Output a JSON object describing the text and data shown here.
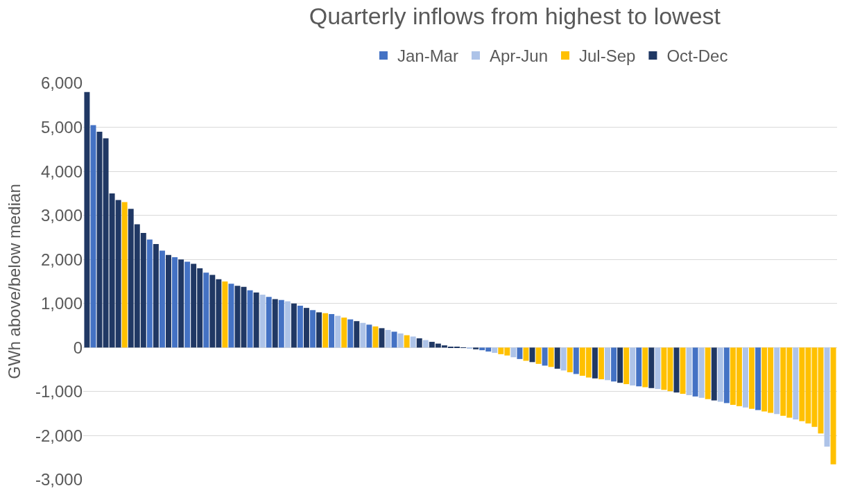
{
  "chart_data": {
    "type": "bar",
    "title": "Quarterly inflows from highest to lowest",
    "ylabel": "GWh above/below median",
    "stacked": true,
    "grid": "y",
    "legend": "top",
    "tick_labels": "y",
    "categories": [
      null,
      null,
      null,
      null,
      null,
      null,
      null,
      null,
      null,
      null,
      null,
      null,
      null,
      null,
      null,
      null,
      null,
      null,
      null,
      null,
      null,
      null,
      null,
      null,
      null,
      null,
      null,
      null,
      null,
      null,
      null,
      null,
      null,
      null,
      null,
      null,
      null,
      null,
      null,
      null,
      null,
      null,
      null,
      null,
      null,
      null,
      null,
      null,
      null,
      null,
      null,
      null,
      null,
      null,
      null,
      null,
      null,
      null,
      null,
      null,
      null,
      null,
      null,
      null,
      null,
      null,
      null,
      null,
      null,
      null,
      null,
      null,
      null,
      null,
      null,
      null,
      null,
      null,
      null,
      null,
      null,
      null,
      null,
      null,
      null,
      null,
      null,
      null,
      null,
      null,
      null,
      null,
      null,
      null,
      null,
      null,
      null,
      null,
      null,
      null,
      null,
      null,
      null,
      null,
      null,
      null,
      null,
      null,
      null,
      null,
      null,
      null,
      null,
      null,
      null,
      null,
      null,
      null,
      null,
      null
    ],
    "ylim": [
      -3000,
      6000
    ],
    "yticks": [
      {
        "value": -3000,
        "label": "-3,000"
      },
      {
        "value": -2000,
        "label": "-2,000"
      },
      {
        "value": -1000,
        "label": "-1,000"
      },
      0,
      {
        "value": 1000,
        "label": "1,000"
      },
      {
        "value": 2000,
        "label": "2,000"
      },
      {
        "value": 3000,
        "label": "3,000"
      },
      {
        "value": 4000,
        "label": "4,000"
      },
      {
        "value": 5000,
        "label": "5,000"
      },
      {
        "value": 6000,
        "label": "6,000"
      }
    ],
    "series": [
      {
        "name": "Jan-Mar",
        "color": "#4472c4",
        "values": [
          null,
          5050,
          null,
          null,
          null,
          null,
          null,
          null,
          null,
          null,
          2450,
          null,
          2200,
          null,
          2050,
          null,
          1950,
          null,
          null,
          1700,
          null,
          null,
          null,
          1450,
          null,
          null,
          1300,
          null,
          null,
          1150,
          null,
          1080,
          null,
          null,
          950,
          null,
          850,
          null,
          null,
          760,
          null,
          null,
          640,
          null,
          null,
          520,
          null,
          null,
          null,
          360,
          null,
          null,
          null,
          null,
          null,
          null,
          null,
          null,
          null,
          null,
          null,
          null,
          null,
          -60,
          -90,
          null,
          null,
          null,
          null,
          -260,
          null,
          null,
          null,
          -410,
          null,
          null,
          null,
          null,
          -600,
          null,
          null,
          null,
          null,
          null,
          -770,
          null,
          null,
          null,
          -880,
          null,
          null,
          null,
          null,
          null,
          null,
          null,
          null,
          -1110,
          null,
          null,
          null,
          null,
          -1260,
          null,
          null,
          null,
          null,
          -1420,
          null,
          null,
          null,
          null,
          null,
          null,
          null,
          null,
          null,
          null,
          null,
          null
        ]
      },
      {
        "name": "Apr-Jun",
        "color": "#adc3e8",
        "values": [
          null,
          null,
          null,
          null,
          null,
          null,
          null,
          null,
          null,
          null,
          null,
          null,
          null,
          null,
          null,
          null,
          null,
          null,
          null,
          null,
          null,
          null,
          null,
          null,
          null,
          null,
          null,
          null,
          1200,
          null,
          null,
          null,
          1050,
          null,
          null,
          null,
          null,
          null,
          null,
          null,
          720,
          null,
          null,
          null,
          560,
          null,
          null,
          null,
          400,
          null,
          320,
          null,
          250,
          null,
          170,
          null,
          null,
          null,
          null,
          null,
          null,
          -20,
          null,
          null,
          null,
          -120,
          null,
          null,
          -220,
          null,
          null,
          null,
          null,
          null,
          null,
          null,
          -520,
          null,
          null,
          null,
          null,
          null,
          null,
          -740,
          null,
          null,
          null,
          -860,
          null,
          null,
          null,
          -940,
          null,
          null,
          null,
          null,
          -1080,
          null,
          -1140,
          null,
          null,
          -1230,
          null,
          null,
          null,
          -1360,
          null,
          null,
          null,
          null,
          -1510,
          null,
          null,
          -1630,
          null,
          null,
          null,
          null,
          -2250,
          null
        ]
      },
      {
        "name": "Jul-Sep",
        "color": "#ffc000",
        "values": [
          null,
          null,
          null,
          null,
          null,
          null,
          3300,
          null,
          null,
          null,
          null,
          null,
          null,
          null,
          null,
          null,
          null,
          null,
          null,
          null,
          null,
          null,
          1500,
          null,
          null,
          null,
          null,
          null,
          null,
          null,
          null,
          null,
          null,
          null,
          null,
          null,
          null,
          null,
          780,
          null,
          null,
          680,
          null,
          null,
          null,
          null,
          480,
          null,
          null,
          null,
          null,
          280,
          null,
          null,
          null,
          null,
          null,
          null,
          null,
          null,
          null,
          null,
          null,
          null,
          null,
          null,
          -150,
          -180,
          null,
          null,
          -300,
          null,
          -370,
          null,
          -440,
          null,
          null,
          -560,
          null,
          -640,
          -680,
          null,
          -720,
          null,
          null,
          null,
          -830,
          null,
          null,
          -900,
          null,
          null,
          -960,
          -990,
          null,
          -1050,
          null,
          null,
          null,
          -1170,
          null,
          null,
          null,
          -1300,
          -1330,
          null,
          -1390,
          null,
          -1450,
          -1480,
          null,
          -1550,
          -1590,
          null,
          -1670,
          -1720,
          -1800,
          -1950,
          null,
          -2650
        ]
      },
      {
        "name": "Oct-Dec",
        "color": "#203864",
        "values": [
          5800,
          null,
          4900,
          4750,
          3500,
          3350,
          null,
          3150,
          2800,
          2600,
          null,
          2350,
          null,
          2100,
          null,
          2000,
          null,
          1900,
          1800,
          null,
          1650,
          1550,
          null,
          null,
          1400,
          1380,
          null,
          1250,
          null,
          null,
          1100,
          null,
          null,
          1000,
          null,
          900,
          null,
          800,
          null,
          null,
          null,
          null,
          null,
          600,
          null,
          null,
          null,
          440,
          null,
          null,
          null,
          null,
          null,
          210,
          null,
          130,
          90,
          50,
          20,
          10,
          -10,
          null,
          -40,
          null,
          null,
          null,
          null,
          null,
          null,
          null,
          null,
          -330,
          null,
          null,
          null,
          -480,
          null,
          null,
          null,
          null,
          null,
          -700,
          null,
          null,
          null,
          -800,
          null,
          null,
          null,
          null,
          -920,
          null,
          null,
          null,
          -1020,
          null,
          null,
          null,
          null,
          null,
          -1200,
          null,
          null,
          null,
          null,
          null,
          null,
          null,
          null,
          null,
          null,
          null,
          null,
          null,
          null,
          null,
          null,
          null,
          null,
          null
        ]
      }
    ]
  }
}
